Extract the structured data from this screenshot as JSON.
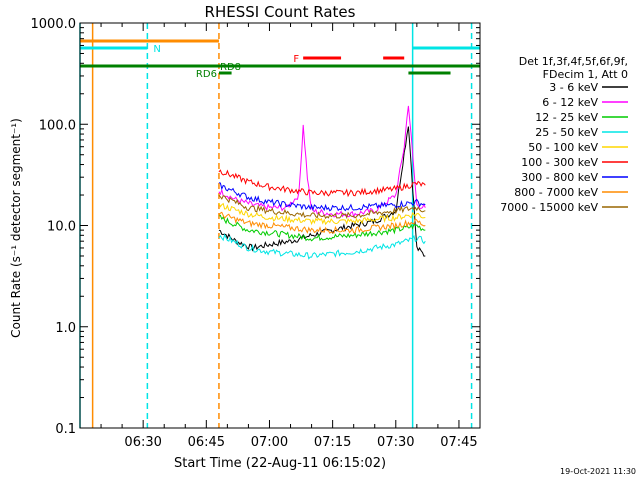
{
  "chart_data": {
    "type": "line",
    "title": "RHESSI Count Rates",
    "xlabel": "Start Time (22-Aug-11 06:15:02)",
    "ylabel": "Count Rate (s⁻¹ detector segment⁻¹)",
    "yscale": "log",
    "ylim": [
      0.1,
      1000.0
    ],
    "xlim": [
      "06:15",
      "07:50"
    ],
    "x_ticks": [
      "06:30",
      "06:45",
      "07:00",
      "07:15",
      "07:30",
      "07:45"
    ],
    "y_ticks": [
      "0.1",
      "1.0",
      "10.0",
      "100.0",
      "1000.0"
    ],
    "legend_header": [
      "Det 1f,3f,4f,5f,6f,9f,",
      "FDecim 1, Att 0"
    ],
    "series": [
      {
        "name": "3 - 6 keV",
        "color": "#000000",
        "x": [
          "06:48",
          "06:52",
          "06:56",
          "07:00",
          "07:05",
          "07:10",
          "07:15",
          "07:20",
          "07:25",
          "07:30",
          "07:33",
          "07:35",
          "07:37"
        ],
        "values": [
          9.0,
          7.0,
          6.0,
          6.5,
          7.0,
          8.0,
          9.0,
          10.0,
          11.0,
          14.0,
          100.0,
          6.0,
          5.0
        ]
      },
      {
        "name": "6 - 12 keV",
        "color": "#ff00ff",
        "x": [
          "06:48",
          "06:52",
          "06:56",
          "07:00",
          "07:04",
          "07:07",
          "07:08",
          "07:09",
          "07:10",
          "07:15",
          "07:20",
          "07:25",
          "07:30",
          "07:32",
          "07:33",
          "07:35",
          "07:37"
        ],
        "values": [
          22.0,
          18.0,
          16.0,
          15.0,
          15.0,
          20.0,
          100.0,
          30.0,
          14.0,
          13.0,
          13.0,
          14.0,
          20.0,
          60.0,
          160.0,
          16.0,
          15.0
        ]
      },
      {
        "name": "12 - 25 keV",
        "color": "#00cc00",
        "x": [
          "06:48",
          "06:55",
          "07:00",
          "07:10",
          "07:20",
          "07:30",
          "07:35",
          "07:37"
        ],
        "values": [
          12.0,
          9.0,
          8.5,
          7.5,
          8.0,
          9.0,
          10.0,
          9.0
        ]
      },
      {
        "name": "25 - 50 keV",
        "color": "#00e5e5",
        "x": [
          "06:48",
          "06:55",
          "07:00",
          "07:10",
          "07:20",
          "07:30",
          "07:35",
          "07:37"
        ],
        "values": [
          8.0,
          6.0,
          5.5,
          5.0,
          5.5,
          6.5,
          7.5,
          7.0
        ]
      },
      {
        "name": "50 - 100 keV",
        "color": "#ffd700",
        "x": [
          "06:48",
          "06:55",
          "07:00",
          "07:10",
          "07:20",
          "07:30",
          "07:35",
          "07:37"
        ],
        "values": [
          16.0,
          13.0,
          12.0,
          11.0,
          11.0,
          12.0,
          13.0,
          12.0
        ]
      },
      {
        "name": "100 - 300 keV",
        "color": "#ff0000",
        "x": [
          "06:48",
          "06:55",
          "07:00",
          "07:10",
          "07:20",
          "07:30",
          "07:35",
          "07:37"
        ],
        "values": [
          35.0,
          27.0,
          24.0,
          21.0,
          21.0,
          23.0,
          26.0,
          25.0
        ]
      },
      {
        "name": "300 - 800 keV",
        "color": "#0000ff",
        "x": [
          "06:48",
          "06:55",
          "07:00",
          "07:10",
          "07:20",
          "07:30",
          "07:35",
          "07:37"
        ],
        "values": [
          25.0,
          19.0,
          17.0,
          15.0,
          15.0,
          16.0,
          17.0,
          16.0
        ]
      },
      {
        "name": "800 - 7000 keV",
        "color": "#ff8c00",
        "x": [
          "06:48",
          "06:55",
          "07:00",
          "07:10",
          "07:20",
          "07:30",
          "07:35",
          "07:37"
        ],
        "values": [
          13.0,
          10.5,
          10.0,
          9.0,
          9.0,
          10.0,
          11.0,
          10.0
        ]
      },
      {
        "name": "7000 - 15000 keV",
        "color": "#996600",
        "x": [
          "06:48",
          "06:55",
          "07:00",
          "07:10",
          "07:20",
          "07:30",
          "07:35",
          "07:37"
        ],
        "values": [
          20.0,
          15.0,
          14.0,
          12.5,
          12.5,
          14.0,
          15.0,
          14.0
        ]
      }
    ],
    "flag_bars": [
      {
        "label": "",
        "color": "#ff8c00",
        "intervals": [
          [
            "06:15",
            "06:48"
          ]
        ]
      },
      {
        "label": "N",
        "color": "#00e5e5",
        "intervals": [
          [
            "06:15",
            "06:31"
          ],
          [
            "07:34",
            "07:50"
          ]
        ]
      },
      {
        "label": "F",
        "color": "#ff0000",
        "intervals": [
          [
            "07:08",
            "07:17"
          ],
          [
            "07:27",
            "07:32"
          ]
        ]
      },
      {
        "label": "RD8",
        "color": "#008000",
        "intervals": [
          [
            "06:15",
            "07:50"
          ]
        ]
      },
      {
        "label": "RD6",
        "color": "#008000",
        "intervals": [
          [
            "06:48",
            "06:51"
          ],
          [
            "07:33",
            "07:43"
          ]
        ]
      }
    ],
    "vertical_markers": [
      {
        "x": "06:15",
        "color": "#00e5e5",
        "style": "solid"
      },
      {
        "x": "06:18",
        "color": "#ff8c00",
        "style": "solid"
      },
      {
        "x": "06:31",
        "color": "#00e5e5",
        "style": "dashed"
      },
      {
        "x": "06:48",
        "color": "#ff8c00",
        "style": "dashed"
      },
      {
        "x": "07:34",
        "color": "#00e5e5",
        "style": "solid"
      },
      {
        "x": "07:48",
        "color": "#00e5e5",
        "style": "dashed"
      }
    ]
  },
  "footer": {
    "timestamp": "19-Oct-2021 11:30"
  }
}
